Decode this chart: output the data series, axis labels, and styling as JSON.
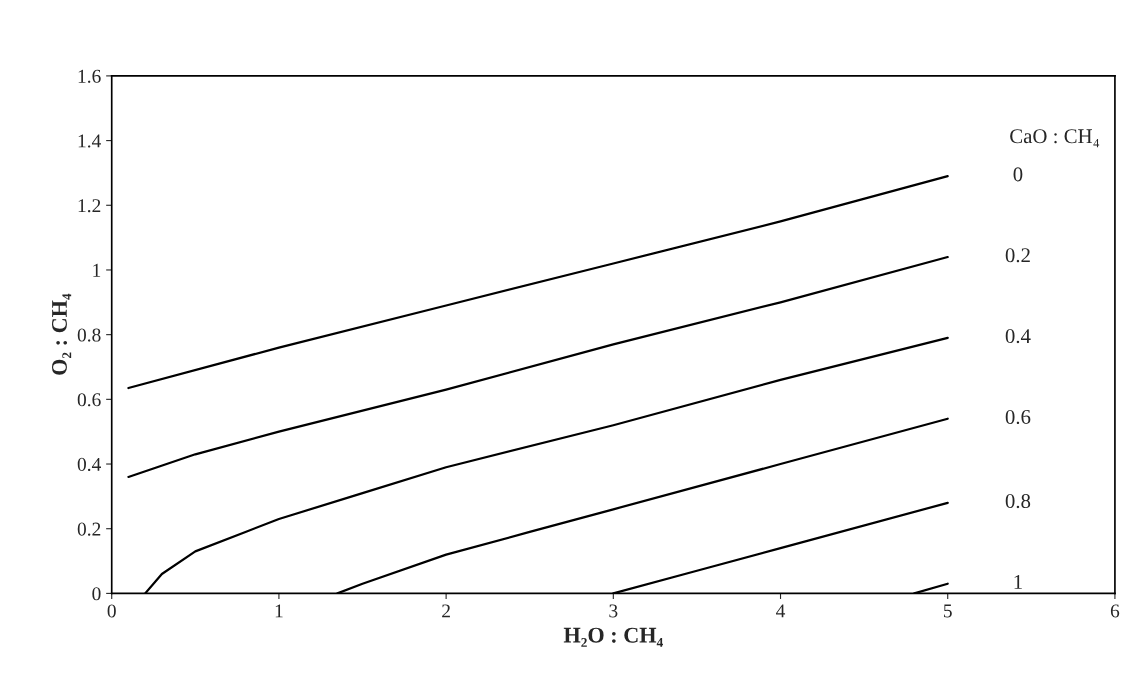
{
  "chart_data": {
    "type": "line",
    "xlabel": "H₂O : CH₄",
    "ylabel": "O₂ : CH₄",
    "legend_title": "CaO : CH₄",
    "xlim": [
      0,
      6
    ],
    "xticks": [
      0,
      1,
      2,
      3,
      4,
      5,
      6
    ],
    "ylim": [
      0,
      1.6
    ],
    "yticks": [
      0,
      0.2,
      0.4,
      0.6,
      0.8,
      1,
      1.2,
      1.4,
      1.6
    ],
    "grid": false,
    "marker": "none",
    "line_style": "solid",
    "series": [
      {
        "name": "0",
        "color": "#000000",
        "x": [
          0.1,
          1,
          2,
          3,
          4,
          5
        ],
        "values": [
          0.635,
          0.76,
          0.89,
          1.02,
          1.15,
          1.29
        ]
      },
      {
        "name": "0.2",
        "color": "#000000",
        "x": [
          0.1,
          0.5,
          1,
          2,
          3,
          4,
          5
        ],
        "values": [
          0.36,
          0.43,
          0.5,
          0.63,
          0.77,
          0.9,
          1.04
        ]
      },
      {
        "name": "0.4",
        "color": "#000000",
        "x": [
          0.2,
          0.3,
          0.5,
          0.8,
          1,
          1.5,
          2,
          3,
          4,
          5
        ],
        "values": [
          0,
          0.06,
          0.13,
          0.19,
          0.23,
          0.31,
          0.39,
          0.52,
          0.66,
          0.79
        ]
      },
      {
        "name": "0.6",
        "color": "#000000",
        "x": [
          1.35,
          1.5,
          2,
          2.5,
          3,
          4,
          5
        ],
        "values": [
          0,
          0.03,
          0.12,
          0.19,
          0.26,
          0.4,
          0.54
        ]
      },
      {
        "name": "0.8",
        "color": "#000000",
        "x": [
          3,
          3.5,
          4,
          5
        ],
        "values": [
          0,
          0.07,
          0.14,
          0.28
        ]
      },
      {
        "name": "1",
        "color": "#000000",
        "x": [
          4.8,
          5
        ],
        "values": [
          0,
          0.03
        ]
      }
    ]
  }
}
